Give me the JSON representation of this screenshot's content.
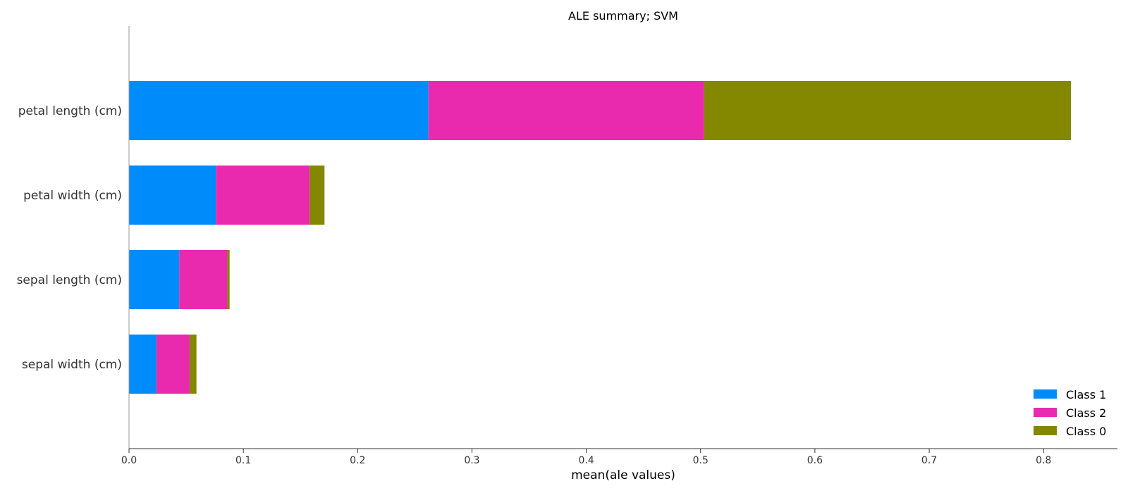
{
  "chart_data": {
    "type": "bar",
    "orientation": "horizontal",
    "stacked": true,
    "title": "ALE summary; SVM",
    "xlabel": "mean(ale values)",
    "ylabel": "",
    "xlim": [
      0,
      0.865
    ],
    "xticks": [
      "0.0",
      "0.1",
      "0.2",
      "0.3",
      "0.4",
      "0.5",
      "0.6",
      "0.7",
      "0.8"
    ],
    "categories": [
      "petal length (cm)",
      "petal width (cm)",
      "sepal length (cm)",
      "sepal width (cm)"
    ],
    "series": [
      {
        "name": "Class 1",
        "color": "#008bfb",
        "values": [
          0.262,
          0.076,
          0.044,
          0.024
        ]
      },
      {
        "name": "Class 2",
        "color": "#ea2aae",
        "values": [
          0.241,
          0.082,
          0.042,
          0.029
        ]
      },
      {
        "name": "Class 0",
        "color": "#838800",
        "values": [
          0.321,
          0.013,
          0.002,
          0.006
        ]
      }
    ],
    "grid": false,
    "legend_position": "bottom-right"
  }
}
